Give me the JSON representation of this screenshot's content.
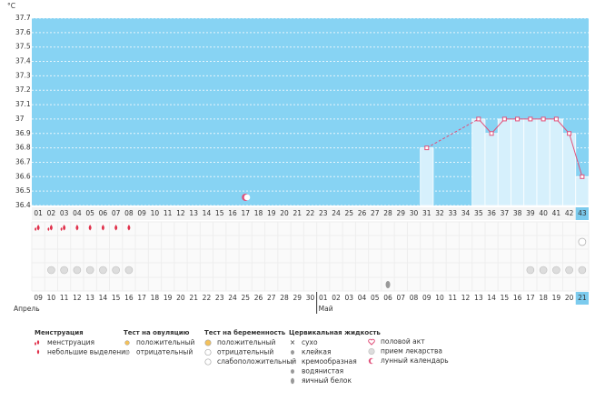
{
  "chart_data": {
    "type": "line",
    "y_unit": "°C",
    "categories": [
      "01",
      "02",
      "03",
      "04",
      "05",
      "06",
      "07",
      "08",
      "09",
      "10",
      "11",
      "12",
      "13",
      "14",
      "15",
      "16",
      "17",
      "18",
      "19",
      "20",
      "21",
      "22",
      "23",
      "24",
      "25",
      "26",
      "27",
      "28",
      "29",
      "30",
      "31",
      "32",
      "33",
      "34",
      "35",
      "36",
      "37",
      "38",
      "39",
      "40",
      "41",
      "42",
      "43"
    ],
    "values": [
      null,
      null,
      null,
      null,
      null,
      null,
      null,
      null,
      null,
      null,
      null,
      null,
      null,
      null,
      null,
      null,
      null,
      null,
      null,
      null,
      null,
      null,
      null,
      null,
      null,
      null,
      null,
      null,
      null,
      null,
      36.8,
      null,
      null,
      null,
      37,
      36.9,
      37,
      37,
      37,
      37,
      37,
      36.9,
      36.6
    ],
    "ylim": [
      36.4,
      37.7
    ],
    "yticks": [
      36.4,
      36.5,
      36.6,
      36.7,
      36.8,
      36.9,
      37,
      37.1,
      37.2,
      37.3,
      37.4,
      37.5,
      37.6,
      37.7
    ],
    "grid": true,
    "today": "43",
    "dates": [
      "09",
      "10",
      "11",
      "12",
      "13",
      "14",
      "15",
      "16",
      "17",
      "18",
      "19",
      "20",
      "21",
      "22",
      "23",
      "24",
      "25",
      "26",
      "27",
      "28",
      "29",
      "30",
      "01",
      "02",
      "03",
      "04",
      "05",
      "06",
      "07",
      "08",
      "09",
      "10",
      "11",
      "12",
      "13",
      "14",
      "15",
      "16",
      "17",
      "18",
      "19",
      "20",
      "21"
    ],
    "weekend": [
      false,
      false,
      false,
      false,
      true,
      true,
      false,
      false,
      false,
      false,
      false,
      true,
      true,
      false,
      false,
      false,
      false,
      false,
      true,
      true,
      false,
      false,
      false,
      false,
      false,
      true,
      true,
      false,
      false,
      false,
      false,
      false,
      true,
      true,
      false,
      false,
      false,
      false,
      false,
      true,
      true,
      false,
      false
    ],
    "months": [
      {
        "label": "Апрель",
        "start": "01"
      },
      {
        "label": "Май",
        "start": "23"
      }
    ],
    "legend": [
      {
        "title": "Менструация",
        "items": [
          {
            "label": "менструация",
            "days": [
              "01",
              "02",
              "03"
            ]
          },
          {
            "label": "небольшие выделения",
            "days": [
              "04",
              "05",
              "06",
              "07",
              "08"
            ]
          }
        ]
      },
      {
        "title": "Тест на овуляцию",
        "items": [
          {
            "label": "положительный",
            "days": []
          },
          {
            "label": "отрицательный",
            "days": []
          }
        ]
      },
      {
        "title": "Тест на беременность",
        "items": [
          {
            "label": "положительный",
            "days": []
          },
          {
            "label": "отрицательный",
            "days": [
              "43"
            ]
          },
          {
            "label": "слабоположительный",
            "days": []
          }
        ]
      },
      {
        "title": "Цервикальная жидкость",
        "items": [
          {
            "label": "сухо",
            "days": []
          },
          {
            "label": "клейкая",
            "days": []
          },
          {
            "label": "кремообразная",
            "days": []
          },
          {
            "label": "водянистая",
            "days": []
          },
          {
            "label": "яичный белок",
            "days": [
              "28"
            ]
          }
        ]
      },
      {
        "items": [
          {
            "label": "половой акт",
            "days": []
          },
          {
            "label": "прием лекарства",
            "days": [
              "02",
              "03",
              "04",
              "05",
              "06",
              "07",
              "08",
              "39",
              "40",
              "41",
              "42",
              "43"
            ]
          },
          {
            "label": "лунный календарь",
            "days": [
              "17"
            ]
          }
        ]
      }
    ]
  }
}
